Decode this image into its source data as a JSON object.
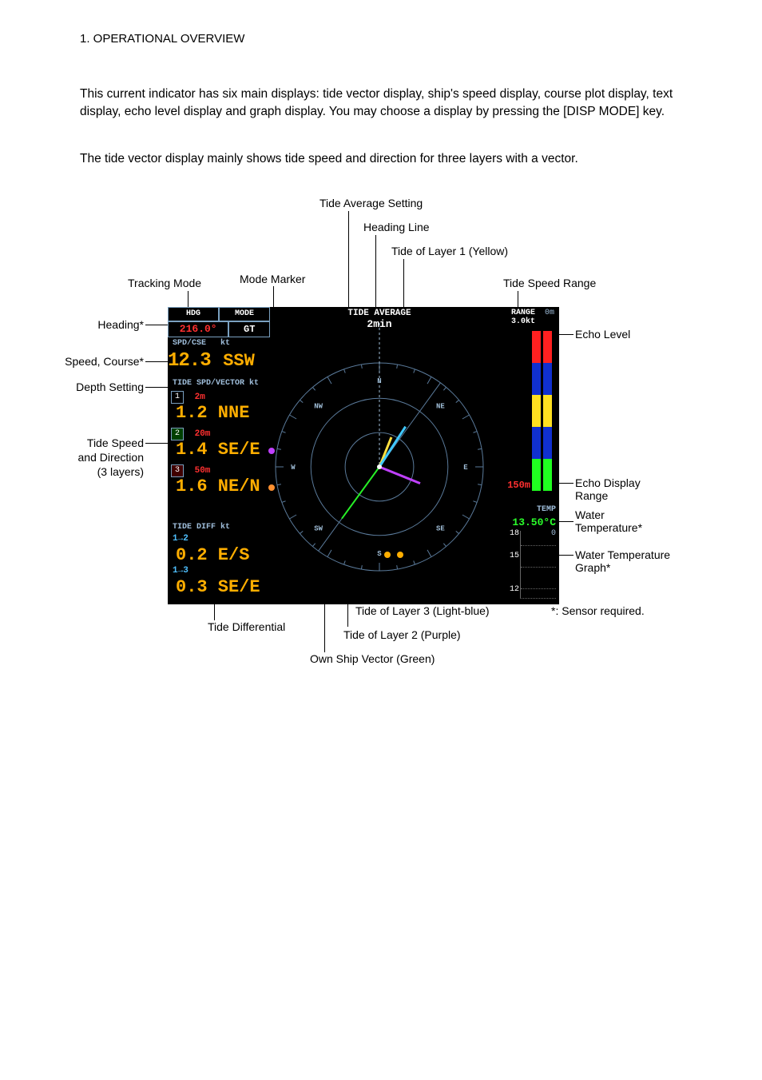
{
  "section_header": "1. OPERATIONAL OVERVIEW",
  "para1": "This current indicator has six main displays: tide vector display, ship's speed display, course plot display, text display, echo level display and graph display. You may choose a display by pressing the [DISP MODE] key.",
  "para2": "The tide vector display mainly shows tide speed and direction for three layers with a vector.",
  "callouts": {
    "tide_avg_setting": "Tide Average Setting",
    "heading_line": "Heading Line",
    "tide_layer1": "Tide of Layer 1 (Yellow)",
    "tracking_mode": "Tracking Mode",
    "mode_marker": "Mode Marker",
    "tide_speed_range": "Tide Speed Range",
    "heading": "Heading*",
    "echo_level": "Echo Level",
    "speed_course": "Speed, Course*",
    "depth_setting": "Depth Setting",
    "tide_spd_dir1": "Tide Speed",
    "tide_spd_dir2": "and Direction",
    "tide_spd_dir3": "(3 layers)",
    "echo_range": "Echo Display",
    "echo_range2": "Range",
    "water_temp": "Water",
    "water_temp2": "Temperature*",
    "water_temp_graph": "Water Temperature",
    "water_temp_graph2": "Graph*",
    "sensor_req": "*: Sensor required.",
    "tide_diff": "Tide Differential",
    "layer3": "Tide of Layer 3 (Light-blue)",
    "layer2": "Tide of Layer 2 (Purple)",
    "own_ship": "Own Ship Vector (Green)"
  },
  "screen": {
    "hdr_hdg": "HDG",
    "hdr_mode": "MODE",
    "hdg_val": "216.0°",
    "mode_val": "GT",
    "spd_hdr_a": "SPD/CSE",
    "spd_hdr_b": "kt",
    "spd_val": "12.3",
    "spd_dir": "SSW",
    "tide_hdr": "TIDE SPD/VECTOR kt",
    "d1_badge": "1",
    "d1_depth": "2m",
    "d1_val": "1.2 NNE",
    "d2_badge": "2",
    "d2_depth": "20m",
    "d2_val": "1.4 SE/E",
    "d3_badge": "3",
    "d3_depth": "50m",
    "d3_val": "1.6 NE/N",
    "tide_diff_hdr": "TIDE DIFF kt",
    "diff12_lbl": "1→2",
    "diff12_val": "0.2 E/S",
    "diff13_lbl": "1→3",
    "diff13_val": "0.3 SE/E",
    "tide_avg_lbl": "TIDE AVERAGE",
    "tide_avg_val": "2min",
    "range_lbl": "RANGE",
    "range_val": "3.0kt",
    "range_zero": "0m",
    "echo_range_val": "150m",
    "temp_lbl": "TEMP",
    "temp_val": "13.50°C",
    "axis_18": "18",
    "axis_15": "15",
    "axis_12": "12",
    "axis_0": "0"
  },
  "compass_marks": {
    "n": "N",
    "ne": "NE",
    "e": "E",
    "se": "SE",
    "s": "S",
    "sw": "SW",
    "w": "W",
    "nw": "NW"
  },
  "colors": {
    "bg": "#000000",
    "border": "#7aa0c0",
    "red": "#ff3030",
    "orange": "#ffae00",
    "cyan": "#4fc0ff",
    "green_vec": "#27f027",
    "yellow_vec": "#ffe040",
    "purple_vec": "#c040ff",
    "lightblue_vec": "#40c8ff"
  },
  "echo_segments": [
    "#ff2020",
    "#ff2020",
    "#1030d0",
    "#1030d0",
    "#ffe020",
    "#ffe020",
    "#1030d0",
    "#1030d0",
    "#20ff20",
    "#20ff20"
  ],
  "vectors": {
    "heading_line_deg": 216,
    "own_ship": {
      "deg": 216,
      "len": 80,
      "color": "#27f027"
    },
    "layer1": {
      "deg": 22,
      "len": 40,
      "color": "#ffe040"
    },
    "layer2": {
      "deg": 112,
      "len": 55,
      "color": "#c040ff"
    },
    "layer3": {
      "deg": 33,
      "len": 60,
      "color": "#40c8ff"
    }
  }
}
